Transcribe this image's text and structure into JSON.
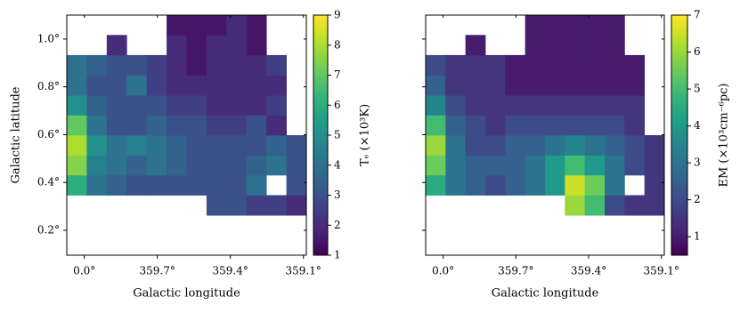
{
  "chart_data": [
    {
      "type": "heatmap",
      "colormap": "viridis",
      "xlabel": "Galactic longitude",
      "ylabel": "Galactic latitude",
      "x": [
        0.031,
        -0.051,
        -0.133,
        -0.215,
        -0.297,
        -0.379,
        -0.461,
        -0.543,
        -0.625,
        -0.707,
        -0.789,
        -0.871
      ],
      "y": [
        0.138,
        0.222,
        0.305,
        0.389,
        0.473,
        0.556,
        0.64,
        0.724,
        0.807,
        0.891,
        0.975,
        1.058
      ],
      "z": [
        [
          null,
          null,
          null,
          null,
          null,
          null,
          null,
          null,
          null,
          null,
          null,
          null
        ],
        [
          null,
          null,
          null,
          null,
          null,
          null,
          null,
          null,
          null,
          null,
          null,
          null
        ],
        [
          null,
          null,
          null,
          null,
          null,
          null,
          null,
          3,
          3,
          2.5,
          2.5,
          2
        ],
        [
          6,
          4,
          3.5,
          3,
          3,
          3,
          3,
          3,
          3,
          4,
          null,
          3
        ],
        [
          7.5,
          4.5,
          4,
          3.5,
          4,
          3.5,
          3,
          3,
          3,
          3.5,
          4,
          3
        ],
        [
          8,
          5,
          4,
          4.5,
          4,
          3.5,
          3,
          3,
          3,
          3,
          3.5,
          3
        ],
        [
          7,
          4,
          3,
          3,
          3.5,
          3,
          3,
          2.5,
          2.5,
          3,
          2,
          null
        ],
        [
          5,
          3.5,
          3,
          3,
          3,
          2.5,
          2.5,
          2,
          2,
          2,
          2.5,
          null
        ],
        [
          4,
          3,
          3,
          4,
          2.5,
          2,
          2,
          2,
          2,
          2,
          2,
          null
        ],
        [
          4,
          3.5,
          3,
          3,
          2.5,
          2,
          1.5,
          2,
          2,
          2,
          2.5,
          null
        ],
        [
          null,
          null,
          2,
          null,
          null,
          2,
          1.5,
          2,
          2,
          1.5,
          null,
          null
        ],
        [
          null,
          null,
          null,
          null,
          null,
          1.5,
          1.5,
          1.5,
          2,
          1.5,
          null,
          null
        ]
      ],
      "xlim": [
        0.072,
        -0.912
      ],
      "ylim": [
        0.096,
        1.1
      ],
      "xticks": [
        {
          "value": 0.0,
          "label": "0.0°"
        },
        {
          "value": -0.3,
          "label": "359.7°"
        },
        {
          "value": -0.6,
          "label": "359.4°"
        },
        {
          "value": -0.9,
          "label": "359.1°"
        }
      ],
      "yticks": [
        {
          "value": 0.2,
          "label": "0.2°"
        },
        {
          "value": 0.4,
          "label": "0.4°"
        },
        {
          "value": 0.6,
          "label": "0.6°"
        },
        {
          "value": 0.8,
          "label": "0.8°"
        },
        {
          "value": 1.0,
          "label": "1.0°"
        }
      ],
      "show_ytick_labels": true,
      "colorbar": {
        "label": "Tₑ (×10³K)",
        "vlim": [
          1,
          9
        ],
        "ticks": [
          1,
          2,
          3,
          4,
          5,
          6,
          7,
          8,
          9
        ]
      }
    },
    {
      "type": "heatmap",
      "colormap": "viridis",
      "xlabel": "Galactic longitude",
      "x": [
        0.031,
        -0.051,
        -0.133,
        -0.215,
        -0.297,
        -0.379,
        -0.461,
        -0.543,
        -0.625,
        -0.707,
        -0.789,
        -0.871
      ],
      "y": [
        0.138,
        0.222,
        0.305,
        0.389,
        0.473,
        0.556,
        0.64,
        0.724,
        0.807,
        0.891,
        0.975,
        1.058
      ],
      "z": [
        [
          null,
          null,
          null,
          null,
          null,
          null,
          null,
          null,
          null,
          null,
          null,
          null
        ],
        [
          null,
          null,
          null,
          null,
          null,
          null,
          null,
          null,
          null,
          null,
          null,
          null
        ],
        [
          null,
          null,
          null,
          null,
          null,
          null,
          null,
          6,
          5,
          2,
          1.5,
          1.5
        ],
        [
          4.5,
          3,
          2.5,
          2,
          2.5,
          3,
          4,
          6.5,
          5.5,
          3,
          null,
          1.5
        ],
        [
          5.5,
          3,
          2.5,
          2.5,
          2.5,
          3,
          4,
          5,
          4,
          3,
          2,
          1.5
        ],
        [
          6,
          3,
          2,
          2,
          2.5,
          2.5,
          3,
          3.5,
          3,
          2.5,
          2,
          1.5
        ],
        [
          5,
          2.5,
          2,
          1.5,
          2,
          2,
          2,
          2,
          2,
          2,
          1.5,
          null
        ],
        [
          3.5,
          2,
          1.5,
          1.5,
          1.5,
          1.5,
          1.5,
          1.5,
          1.5,
          1.5,
          1.5,
          null
        ],
        [
          2.5,
          1.5,
          1.5,
          1.5,
          1,
          1,
          1,
          1,
          1,
          1,
          1,
          null
        ],
        [
          2,
          1.5,
          1.5,
          1.5,
          1,
          1,
          1,
          1,
          1,
          1,
          1,
          null
        ],
        [
          null,
          null,
          1,
          null,
          null,
          1,
          1,
          1,
          1,
          1,
          null,
          null
        ],
        [
          null,
          null,
          null,
          null,
          null,
          1,
          1,
          1,
          1,
          1,
          null,
          null
        ]
      ],
      "xlim": [
        0.072,
        -0.912
      ],
      "ylim": [
        0.096,
        1.1
      ],
      "xticks": [
        {
          "value": 0.0,
          "label": "0.0°"
        },
        {
          "value": -0.3,
          "label": "359.7°"
        },
        {
          "value": -0.6,
          "label": "359.4°"
        },
        {
          "value": -0.9,
          "label": "359.1°"
        }
      ],
      "yticks": [
        0.2,
        0.4,
        0.6,
        0.8,
        1.0
      ],
      "show_ytick_labels": false,
      "colorbar": {
        "label": "EM (×10³cm⁻⁶pc)",
        "vlim": [
          0.5,
          7
        ],
        "ticks": [
          1,
          2,
          3,
          4,
          5,
          6,
          7
        ]
      }
    }
  ]
}
